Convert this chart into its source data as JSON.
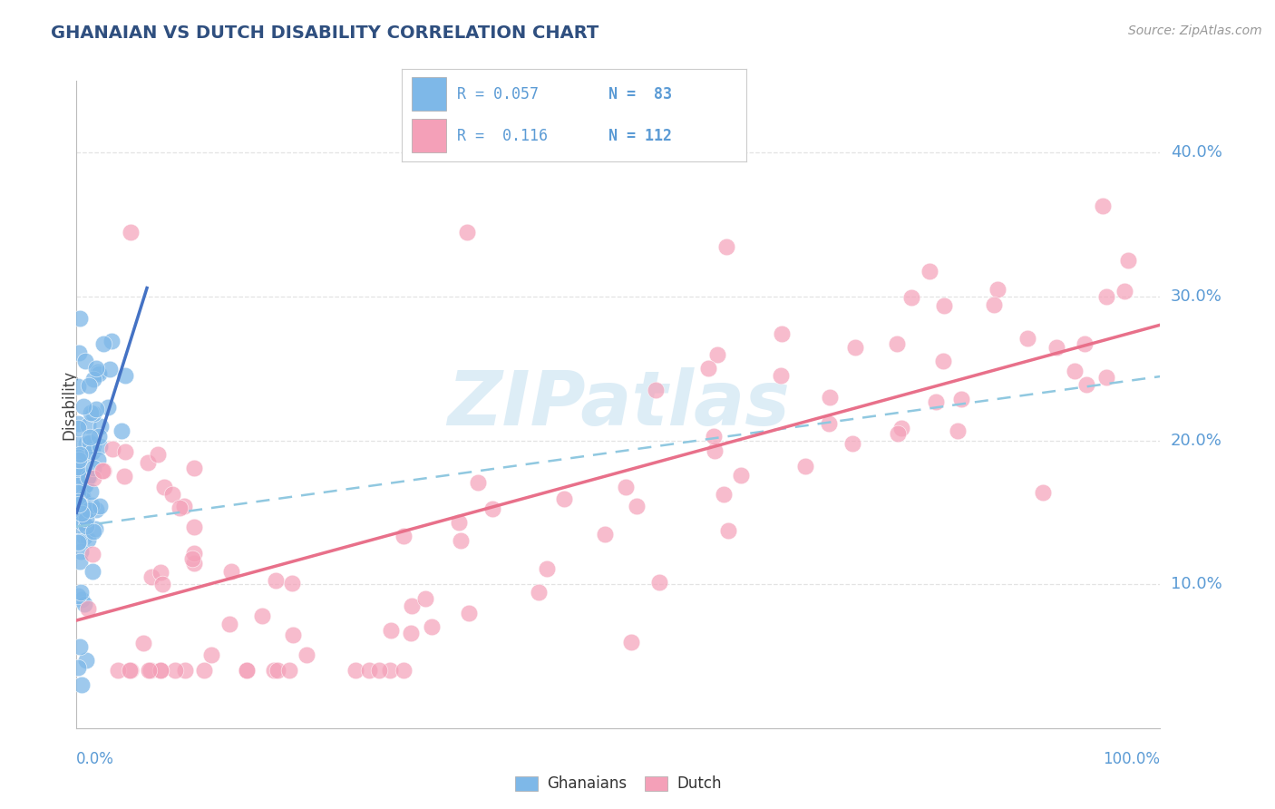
{
  "title": "GHANAIAN VS DUTCH DISABILITY CORRELATION CHART",
  "source_text": "Source: ZipAtlas.com",
  "ylabel": "Disability",
  "ytick_labels": [
    "10.0%",
    "20.0%",
    "30.0%",
    "40.0%"
  ],
  "ytick_vals": [
    0.1,
    0.2,
    0.3,
    0.4
  ],
  "xlim": [
    0.0,
    1.0
  ],
  "ylim": [
    0.0,
    0.45
  ],
  "ghanaian_color": "#7EB8E8",
  "dutch_color": "#F4A0B8",
  "ghanaian_line_color": "#4472C4",
  "dutch_line_color": "#E8708A",
  "dashed_line_color": "#90C8E0",
  "legend_text_color": "#5B9BD5",
  "title_color": "#2F4F7F",
  "source_color": "#999999",
  "axis_label_color": "#5B9BD5",
  "grid_color": "#DDDDDD",
  "watermark_color": "#D8EAF5",
  "legend_R_ghanaian": "R = 0.057",
  "legend_N_ghanaian": "N =  83",
  "legend_R_dutch": "R =  0.116",
  "legend_N_dutch": "N = 112",
  "ghanaian_seed": 17,
  "dutch_seed": 42
}
